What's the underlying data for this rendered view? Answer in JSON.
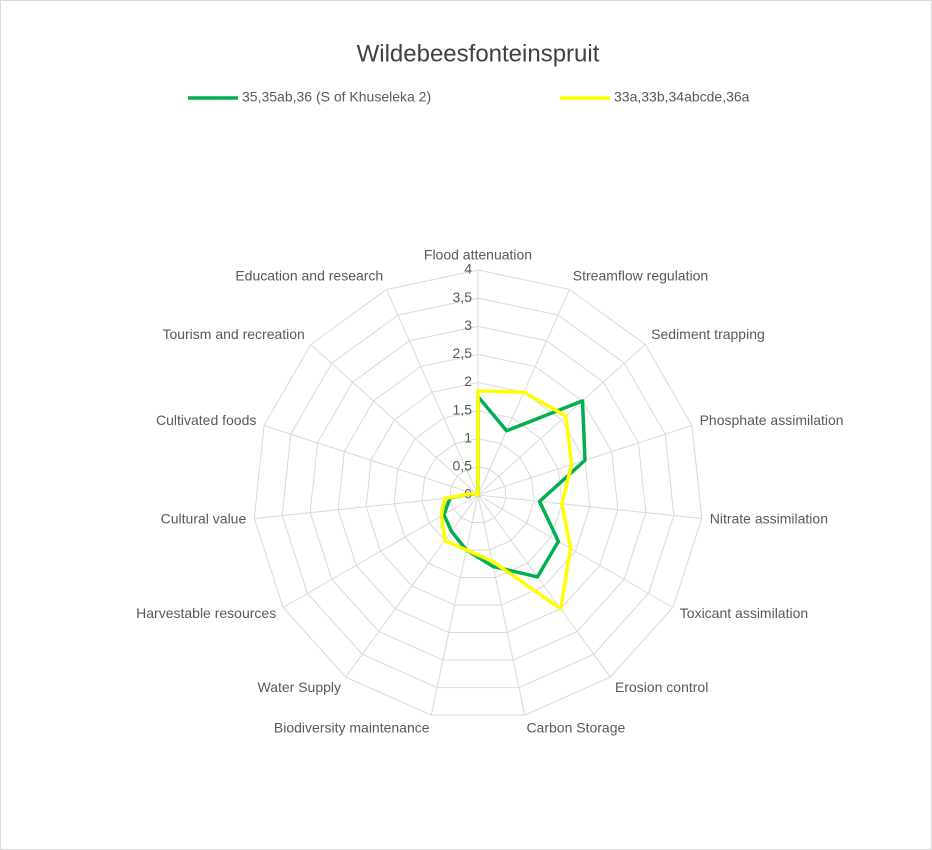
{
  "chart_data": {
    "type": "radar",
    "title": "Wildebeesfonteinspruit",
    "categories": [
      "Flood attenuation",
      "Streamflow regulation",
      "Sediment trapping",
      "Phosphate assimilation",
      "Nitrate assimilation",
      "Toxicant assimilation",
      "Erosion control",
      "Carbon Storage",
      "Biodiversity maintenance",
      "Water Supply",
      "Harvestable resources",
      "Cultural value",
      "Cultivated foods",
      "Tourism and recreation",
      "Education and research"
    ],
    "series": [
      {
        "name": "35,35ab,36 (S of Khuseleka 2)",
        "color": "#00b050",
        "values": [
          1.75,
          1.25,
          2.5,
          2.0,
          1.1,
          1.65,
          1.8,
          1.3,
          1.0,
          0.8,
          0.7,
          0.5,
          0.1,
          0,
          0
        ]
      },
      {
        "name": "33a,33b,34abcde,36a",
        "color": "#ffff00",
        "values": [
          1.85,
          2.0,
          2.1,
          1.75,
          1.5,
          1.9,
          2.5,
          1.2,
          1.0,
          1.0,
          0.75,
          0.6,
          0.1,
          0,
          0
        ]
      }
    ],
    "ylim": [
      0,
      4
    ],
    "yticks": [
      0,
      {
        "value": 0.5,
        "label": "0,5"
      },
      1,
      {
        "value": 1.5,
        "label": "1,5"
      },
      2,
      {
        "value": 2.5,
        "label": "2,5"
      },
      3,
      {
        "value": 3.5,
        "label": "3,5"
      },
      4
    ],
    "grid": true,
    "legend": "top"
  }
}
